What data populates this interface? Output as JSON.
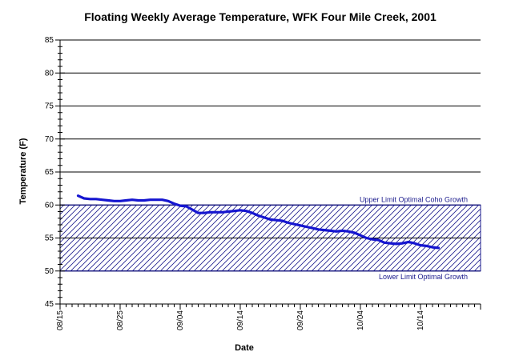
{
  "chart_data": {
    "type": "line",
    "title": "Floating Weekly Average Temperature, WFK Four Mile Creek, 2001",
    "xlabel": "Date",
    "ylabel": "Temperature (F)",
    "ylim": [
      45,
      85
    ],
    "y_ticks": [
      "45",
      "50",
      "55",
      "60",
      "65",
      "70",
      "75",
      "80",
      "85"
    ],
    "x_ticks": [
      {
        "label": "08/15",
        "day": 0
      },
      {
        "label": "08/25",
        "day": 10
      },
      {
        "label": "09/04",
        "day": 20
      },
      {
        "label": "09/14",
        "day": 30
      },
      {
        "label": "09/24",
        "day": 40
      },
      {
        "label": "10/04",
        "day": 50
      },
      {
        "label": "10/14",
        "day": 60
      }
    ],
    "xlim_days": [
      0,
      70
    ],
    "grid": "horizontal",
    "band": {
      "upper": 60,
      "lower": 50,
      "upper_label": "Upper Limit Optimal Coho Growth",
      "lower_label": "Lower Limit Optimal Growth",
      "color": "#1a1a8c"
    },
    "series": [
      {
        "color": "#1515d0",
        "points": [
          [
            3.0,
            61.4
          ],
          [
            4.0,
            61.0
          ],
          [
            5.0,
            60.9
          ],
          [
            6.0,
            60.9
          ],
          [
            7.0,
            60.8
          ],
          [
            8.0,
            60.7
          ],
          [
            9.0,
            60.6
          ],
          [
            10.0,
            60.6
          ],
          [
            11.0,
            60.7
          ],
          [
            12.0,
            60.8
          ],
          [
            13.0,
            60.7
          ],
          [
            14.0,
            60.7
          ],
          [
            15.0,
            60.8
          ],
          [
            16.0,
            60.8
          ],
          [
            17.0,
            60.8
          ],
          [
            18.0,
            60.6
          ],
          [
            19.0,
            60.2
          ],
          [
            20.0,
            59.9
          ],
          [
            21.0,
            59.8
          ],
          [
            22.0,
            59.3
          ],
          [
            23.0,
            58.8
          ],
          [
            24.0,
            58.8
          ],
          [
            25.0,
            58.9
          ],
          [
            26.0,
            58.9
          ],
          [
            27.0,
            58.9
          ],
          [
            28.0,
            59.0
          ],
          [
            29.0,
            59.1
          ],
          [
            30.0,
            59.2
          ],
          [
            31.0,
            59.1
          ],
          [
            32.0,
            58.8
          ],
          [
            33.0,
            58.4
          ],
          [
            34.0,
            58.1
          ],
          [
            35.0,
            57.8
          ],
          [
            36.0,
            57.7
          ],
          [
            37.0,
            57.6
          ],
          [
            38.0,
            57.3
          ],
          [
            39.0,
            57.1
          ],
          [
            40.0,
            56.9
          ],
          [
            41.0,
            56.7
          ],
          [
            42.0,
            56.5
          ],
          [
            43.0,
            56.3
          ],
          [
            44.0,
            56.2
          ],
          [
            45.0,
            56.1
          ],
          [
            46.0,
            56.0
          ],
          [
            47.0,
            56.1
          ],
          [
            48.0,
            56.0
          ],
          [
            49.0,
            55.8
          ],
          [
            50.0,
            55.4
          ],
          [
            51.0,
            55.0
          ],
          [
            52.0,
            54.8
          ],
          [
            53.0,
            54.7
          ],
          [
            54.0,
            54.3
          ],
          [
            55.0,
            54.2
          ],
          [
            56.0,
            54.1
          ],
          [
            57.0,
            54.2
          ],
          [
            58.0,
            54.4
          ],
          [
            59.0,
            54.2
          ],
          [
            60.0,
            53.9
          ],
          [
            61.0,
            53.8
          ],
          [
            62.0,
            53.6
          ],
          [
            63.0,
            53.5
          ]
        ]
      }
    ]
  }
}
